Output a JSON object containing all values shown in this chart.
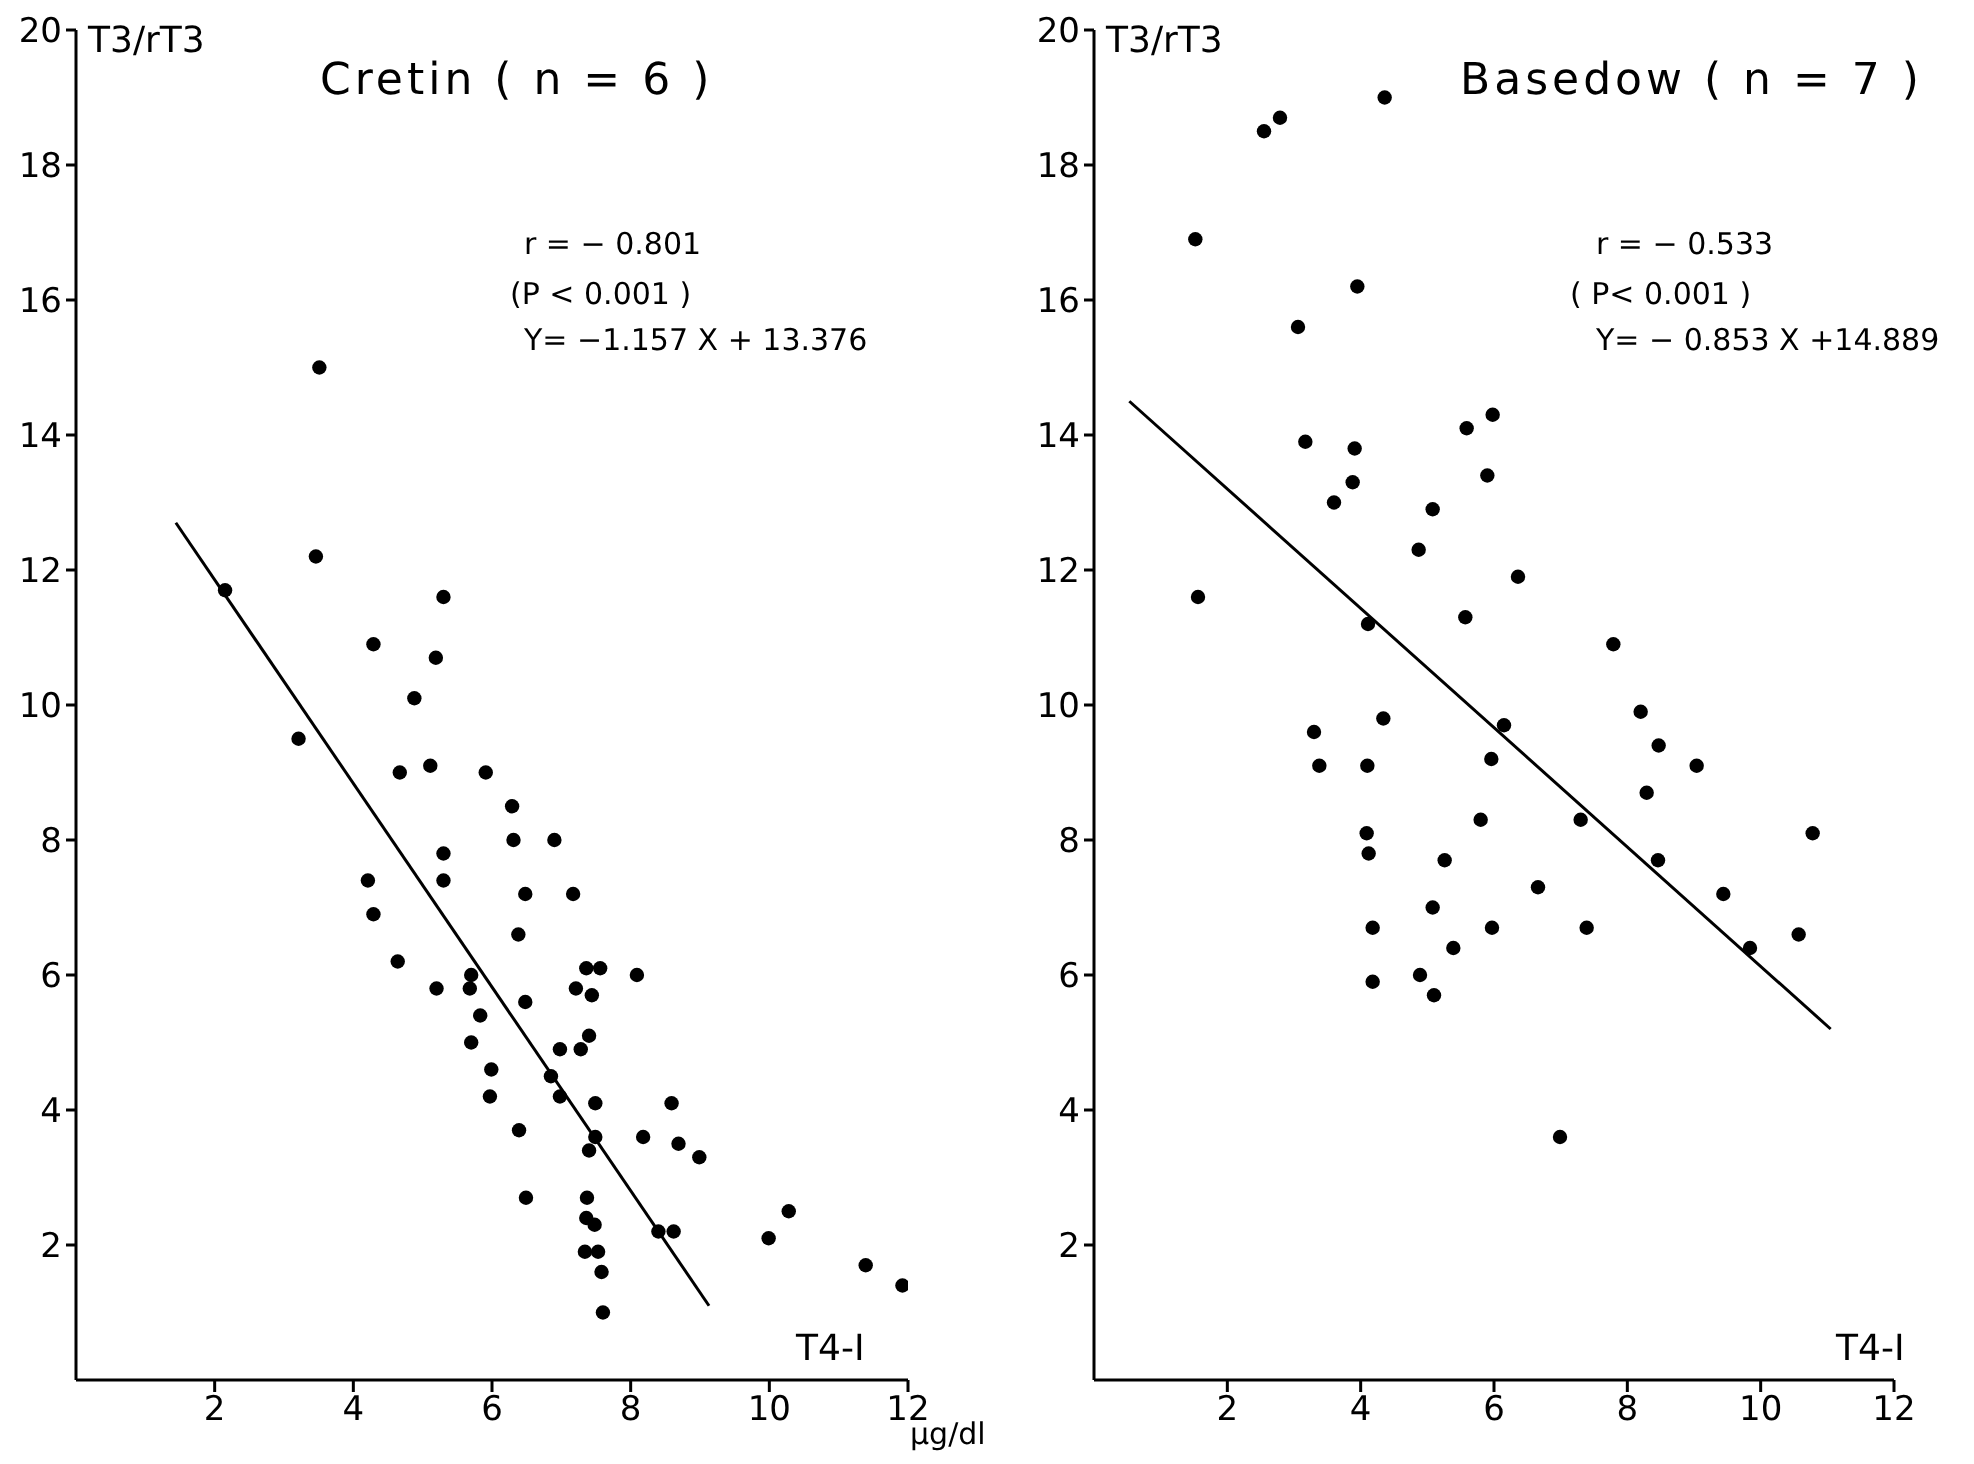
{
  "chart_data": [
    {
      "type": "scatter",
      "title": "Cretin ( n = 6 )",
      "ylabel": "T3/rT3",
      "xlabel": "T4-I",
      "annotations": [
        "r = − 0.801",
        "(P < 0.001 )",
        "Y= −1.157 X + 13.376",
        "μg/dl"
      ],
      "xlim": [
        0,
        12
      ],
      "xticks": [
        2,
        4,
        6,
        8,
        10,
        12
      ],
      "ylim": [
        0,
        20
      ],
      "yticks": [
        2,
        4,
        6,
        8,
        10,
        12,
        14,
        16,
        18,
        20
      ],
      "series": [
        {
          "marker": "circle",
          "color": "#000000",
          "x": [
            3.51,
            3.46,
            2.15,
            5.3,
            4.29,
            5.19,
            4.88,
            3.21,
            4.67,
            5.11,
            5.91,
            6.29,
            6.31,
            6.9,
            5.3,
            5.3,
            4.21,
            4.29,
            6.48,
            7.17,
            6.38,
            4.64,
            7.36,
            7.56,
            8.09,
            5.7,
            5.2,
            5.68,
            7.21,
            7.44,
            6.48,
            5.83,
            7.4,
            5.7,
            6.98,
            7.28,
            5.99,
            6.85,
            5.97,
            6.98,
            7.49,
            8.59,
            6.39,
            8.18,
            7.49,
            8.69,
            7.4,
            8.99,
            6.49,
            7.37,
            10.28,
            7.36,
            7.48,
            8.4,
            8.62,
            9.99,
            7.34,
            7.53,
            7.58,
            11.39,
            11.92,
            7.6
          ],
          "values": [
            15.0,
            12.2,
            11.7,
            11.6,
            10.9,
            10.7,
            10.1,
            9.5,
            9.0,
            9.1,
            9.0,
            8.5,
            8.0,
            8.0,
            7.8,
            7.4,
            7.4,
            6.9,
            7.2,
            7.2,
            6.6,
            6.2,
            6.1,
            6.1,
            6.0,
            6.0,
            5.8,
            5.8,
            5.8,
            5.7,
            5.6,
            5.4,
            5.1,
            5.0,
            4.9,
            4.9,
            4.6,
            4.5,
            4.2,
            4.2,
            4.1,
            4.1,
            3.7,
            3.6,
            3.6,
            3.5,
            3.4,
            3.3,
            2.7,
            2.7,
            2.5,
            2.4,
            2.3,
            2.2,
            2.2,
            2.1,
            1.9,
            1.9,
            1.6,
            1.7,
            1.4,
            1.0
          ]
        },
        {
          "type": "line",
          "color": "#000000",
          "x": [
            1.44,
            9.13
          ],
          "values": [
            12.7,
            1.1
          ]
        }
      ]
    },
    {
      "type": "scatter",
      "title": "Basedow ( n = 7 )",
      "ylabel": "T3/rT3",
      "xlabel": "T4-I",
      "annotations": [
        "r = − 0.533",
        "( P< 0.001 )",
        "Y= − 0.853 X +14.889"
      ],
      "xlim": [
        0,
        12
      ],
      "xticks": [
        2,
        4,
        6,
        8,
        10,
        12
      ],
      "ylim": [
        0,
        20
      ],
      "yticks": [
        2,
        4,
        6,
        8,
        10,
        12,
        14,
        16,
        18,
        20
      ],
      "series": [
        {
          "marker": "circle",
          "color": "#000000",
          "x": [
            4.36,
            2.55,
            2.79,
            1.52,
            3.95,
            3.06,
            5.98,
            5.59,
            3.17,
            3.91,
            5.9,
            3.88,
            3.6,
            5.08,
            4.87,
            6.36,
            1.56,
            5.57,
            4.11,
            7.79,
            8.2,
            4.34,
            3.3,
            6.15,
            8.47,
            5.96,
            3.38,
            4.1,
            9.04,
            8.29,
            5.8,
            7.3,
            4.09,
            10.78,
            4.12,
            8.46,
            5.26,
            6.66,
            9.44,
            5.08,
            4.18,
            7.39,
            5.97,
            10.57,
            5.39,
            9.84,
            4.18,
            4.89,
            5.1,
            6.99
          ],
          "values": [
            19.0,
            18.5,
            18.7,
            16.9,
            16.2,
            15.6,
            14.3,
            14.1,
            13.9,
            13.8,
            13.4,
            13.3,
            13.0,
            12.9,
            12.3,
            11.9,
            11.6,
            11.3,
            11.2,
            10.9,
            9.9,
            9.8,
            9.6,
            9.7,
            9.4,
            9.2,
            9.1,
            9.1,
            9.1,
            8.7,
            8.3,
            8.3,
            8.1,
            8.1,
            7.8,
            7.7,
            7.7,
            7.3,
            7.2,
            7.0,
            6.7,
            6.7,
            6.7,
            6.6,
            6.4,
            6.4,
            5.9,
            6.0,
            5.7,
            3.6
          ]
        },
        {
          "type": "line",
          "color": "#000000",
          "x": [
            0.53,
            11.05
          ],
          "values": [
            14.5,
            5.2
          ]
        }
      ]
    }
  ]
}
